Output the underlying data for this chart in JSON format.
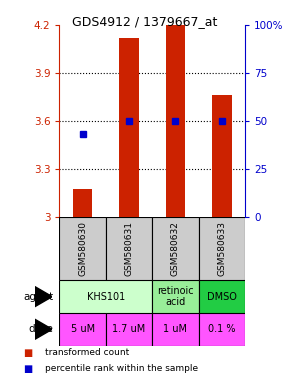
{
  "title": "GDS4912 / 1379667_at",
  "samples": [
    "GSM580630",
    "GSM580631",
    "GSM580632",
    "GSM580633"
  ],
  "bar_values": [
    3.175,
    4.12,
    4.2,
    3.76
  ],
  "bar_bottom": 3.0,
  "percentile_values": [
    43,
    50,
    50,
    50
  ],
  "percentile_left_color": "#0000cc",
  "bar_color": "#cc2200",
  "ylim_left": [
    3.0,
    4.2
  ],
  "ylim_right": [
    0,
    100
  ],
  "yticks_left": [
    3.0,
    3.3,
    3.6,
    3.9,
    4.2
  ],
  "yticks_right": [
    0,
    25,
    50,
    75,
    100
  ],
  "ytick_labels_left": [
    "3",
    "3.3",
    "3.6",
    "3.9",
    "4.2"
  ],
  "ytick_labels_right": [
    "0",
    "25",
    "50",
    "75",
    "100%"
  ],
  "agent_spans": [
    [
      0,
      2,
      "KHS101",
      "#ccffcc"
    ],
    [
      2,
      3,
      "retinoic\nacid",
      "#99ee99"
    ],
    [
      3,
      4,
      "DMSO",
      "#22cc44"
    ]
  ],
  "dose_labels": [
    "5 uM",
    "1.7 uM",
    "1 uM",
    "0.1 %"
  ],
  "dose_color": "#ff55ff",
  "sample_bg_color": "#cccccc",
  "legend_bar_color": "#cc2200",
  "legend_dot_color": "#0000cc",
  "legend_text1": "transformed count",
  "legend_text2": "percentile rank within the sample",
  "left_axis_color": "#cc2200",
  "right_axis_color": "#0000cc",
  "grid_lines": [
    3.3,
    3.6,
    3.9
  ]
}
